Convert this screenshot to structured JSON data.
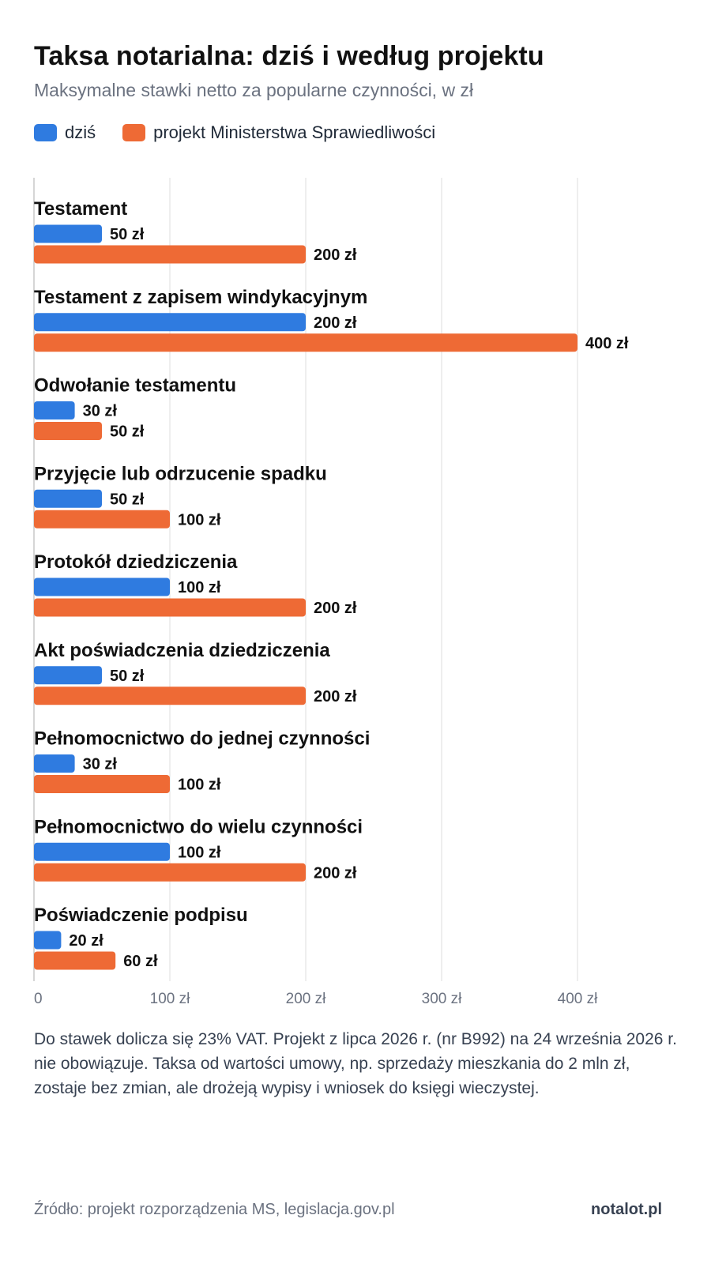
{
  "title": "Taksa notarialna: dziś i według projektu",
  "subtitle": "Maksymalne stawki netto za popularne czynności, w zł",
  "legend": [
    {
      "label": "dziś",
      "color": "#2f7be0"
    },
    {
      "label": "projekt Ministerstwa Sprawiedliwości",
      "color": "#ee6a35"
    }
  ],
  "chart_data": {
    "type": "bar",
    "orientation": "horizontal",
    "categories": [
      "Testament",
      "Testament z zapisem windykacyjnym",
      "Odwołanie testamentu",
      "Przyjęcie lub odrzucenie spadku",
      "Protokół dziedziczenia",
      "Akt poświadczenia dziedziczenia",
      "Pełnomocnictwo do jednej czynności",
      "Pełnomocnictwo do wielu czynności",
      "Poświadczenie podpisu"
    ],
    "series": [
      {
        "name": "dziś",
        "color": "#2f7be0",
        "values": [
          50,
          200,
          30,
          50,
          100,
          50,
          30,
          100,
          20
        ]
      },
      {
        "name": "projekt Ministerstwa Sprawiedliwości",
        "color": "#ee6a35",
        "values": [
          200,
          400,
          50,
          100,
          200,
          200,
          100,
          200,
          60
        ]
      }
    ],
    "value_suffix": " zł",
    "xlim": [
      0,
      400
    ],
    "xticks": [
      0,
      100,
      200,
      300,
      400
    ],
    "xtick_labels": [
      "0",
      "100 zł",
      "200 zł",
      "300 zł",
      "400 zł"
    ],
    "grid": true
  },
  "footnote": "Do stawek dolicza się 23% VAT. Projekt z lipca 2026 r. (nr B992) na 24 września 2026 r. nie obowiązuje. Taksa od wartości umowy, np. sprzedaży mieszkania do 2 mln zł, zostaje bez zmian, ale drożeją wypisy i wniosek do księgi wieczystej.",
  "source": "Źródło: projekt rozporządzenia MS, legislacja.gov.pl",
  "brand": "notalot.pl"
}
